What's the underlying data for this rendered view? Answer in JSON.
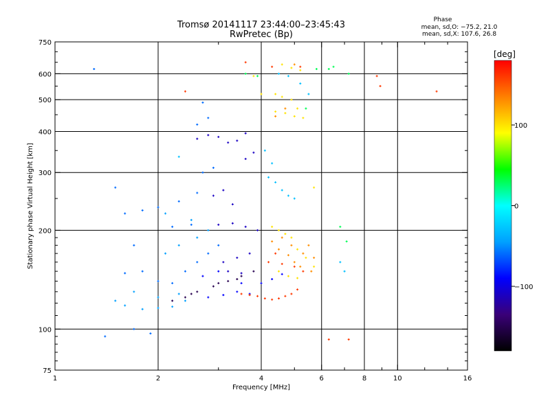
{
  "header": {
    "title": "Tromsø 20141117 23:44:00–23:45:43",
    "subtitle": "RwPretec (Bp)",
    "phase_box": {
      "heading": "Phase",
      "line_o": "mean, sd,O: −75.2, 21.0",
      "line_x": "mean, sd,X: 107.6, 26.8"
    }
  },
  "chart_data": {
    "type": "scatter",
    "xlabel": "Frequency [MHz]",
    "ylabel": "Stationary phase Virtual Height [km]",
    "x_scale": "log",
    "y_scale": "log",
    "xlim": [
      1,
      16
    ],
    "ylim": [
      75,
      750
    ],
    "x_ticks": [
      1,
      2,
      4,
      6,
      8,
      10,
      16
    ],
    "x_tick_labels": [
      "1",
      "2",
      "4",
      "6",
      "8",
      "10",
      "16"
    ],
    "y_ticks": [
      75,
      100,
      200,
      300,
      400,
      500,
      600,
      750
    ],
    "y_tick_labels": [
      "75",
      "100",
      "200",
      "300",
      "400",
      "500",
      "600",
      "750"
    ],
    "grid_x": [
      2,
      4,
      6,
      8,
      10
    ],
    "grid_y": [
      100,
      200,
      300,
      400,
      500,
      600
    ],
    "grid": true,
    "colorbar": {
      "label": "[deg]",
      "range": [
        -180,
        180
      ],
      "ticks": [
        100,
        0,
        -100
      ],
      "tick_labels": [
        "100",
        "0",
        "−100"
      ],
      "colors": [
        "#000000",
        "#3a0078",
        "#0000ff",
        "#00a0ff",
        "#00ffff",
        "#00ff00",
        "#ffff00",
        "#ff8000",
        "#ff0000"
      ]
    },
    "series": [
      {
        "color_value": -150,
        "points": [
          [
            2.2,
            122
          ],
          [
            2.4,
            125
          ],
          [
            2.6,
            130
          ],
          [
            2.9,
            135
          ],
          [
            3.2,
            140
          ],
          [
            3.5,
            145
          ],
          [
            3.8,
            150
          ],
          [
            2.5,
            128
          ],
          [
            3.0,
            138
          ],
          [
            3.4,
            142
          ]
        ]
      },
      {
        "color_value": -110,
        "points": [
          [
            2.6,
            380
          ],
          [
            2.8,
            390
          ],
          [
            3.0,
            385
          ],
          [
            3.2,
            370
          ],
          [
            3.4,
            375
          ],
          [
            3.6,
            395
          ],
          [
            2.9,
            255
          ],
          [
            3.1,
            265
          ],
          [
            3.3,
            240
          ],
          [
            3.6,
            330
          ],
          [
            3.8,
            345
          ],
          [
            3.0,
            208
          ],
          [
            3.3,
            210
          ],
          [
            3.6,
            205
          ],
          [
            3.9,
            200
          ],
          [
            3.1,
            160
          ],
          [
            3.4,
            165
          ],
          [
            3.7,
            170
          ],
          [
            3.2,
            150
          ],
          [
            3.5,
            148
          ]
        ]
      },
      {
        "color_value": -90,
        "points": [
          [
            2.8,
            125
          ],
          [
            3.1,
            127
          ],
          [
            3.4,
            130
          ],
          [
            3.7,
            128
          ],
          [
            4.0,
            138
          ],
          [
            4.3,
            142
          ],
          [
            4.6,
            147
          ],
          [
            3.5,
            138
          ],
          [
            2.7,
            145
          ],
          [
            3.0,
            150
          ]
        ]
      },
      {
        "color_value": -60,
        "points": [
          [
            1.6,
            148
          ],
          [
            1.8,
            150
          ],
          [
            2.0,
            140
          ],
          [
            2.2,
            138
          ],
          [
            2.4,
            150
          ],
          [
            2.6,
            160
          ],
          [
            2.8,
            170
          ],
          [
            3.0,
            180
          ],
          [
            2.2,
            205
          ],
          [
            2.5,
            208
          ],
          [
            2.0,
            235
          ],
          [
            2.3,
            245
          ],
          [
            2.6,
            260
          ],
          [
            1.6,
            225
          ],
          [
            1.8,
            230
          ],
          [
            2.7,
            300
          ],
          [
            2.9,
            310
          ],
          [
            2.6,
            420
          ],
          [
            2.8,
            440
          ],
          [
            2.7,
            490
          ],
          [
            1.3,
            620
          ],
          [
            1.5,
            270
          ],
          [
            1.7,
            180
          ],
          [
            1.4,
            95
          ],
          [
            1.7,
            100
          ],
          [
            1.9,
            97
          ]
        ]
      },
      {
        "color_value": -45,
        "points": [
          [
            1.6,
            118
          ],
          [
            1.8,
            115
          ],
          [
            2.0,
            116
          ],
          [
            2.2,
            117
          ],
          [
            2.4,
            122
          ],
          [
            2.0,
            125
          ],
          [
            2.3,
            128
          ],
          [
            1.5,
            122
          ],
          [
            1.7,
            130
          ],
          [
            2.1,
            170
          ],
          [
            2.3,
            180
          ],
          [
            2.6,
            190
          ],
          [
            2.1,
            225
          ],
          [
            2.5,
            215
          ],
          [
            2.8,
            200
          ]
        ]
      },
      {
        "color_value": -30,
        "points": [
          [
            4.2,
            290
          ],
          [
            4.4,
            280
          ],
          [
            4.6,
            265
          ],
          [
            4.8,
            255
          ],
          [
            5.0,
            250
          ],
          [
            4.5,
            600
          ],
          [
            4.8,
            590
          ],
          [
            5.2,
            560
          ],
          [
            5.5,
            520
          ],
          [
            4.1,
            350
          ],
          [
            4.3,
            320
          ],
          [
            6.8,
            160
          ],
          [
            7.0,
            150
          ],
          [
            2.3,
            335
          ]
        ]
      },
      {
        "color_value": 30,
        "points": [
          [
            6.3,
            620
          ],
          [
            6.5,
            630
          ],
          [
            7.2,
            600
          ],
          [
            3.6,
            600
          ],
          [
            3.9,
            590
          ],
          [
            6.8,
            205
          ],
          [
            7.1,
            185
          ],
          [
            5.8,
            620
          ],
          [
            5.4,
            470
          ]
        ]
      },
      {
        "color_value": 100,
        "points": [
          [
            4.3,
            205
          ],
          [
            4.5,
            200
          ],
          [
            4.7,
            195
          ],
          [
            4.9,
            190
          ],
          [
            5.1,
            175
          ],
          [
            5.4,
            165
          ],
          [
            5.7,
            155
          ],
          [
            4.5,
            150
          ],
          [
            4.8,
            145
          ],
          [
            5.1,
            143
          ],
          [
            4.4,
            520
          ],
          [
            4.6,
            510
          ],
          [
            4.9,
            500
          ],
          [
            5.1,
            470
          ],
          [
            4.6,
            640
          ],
          [
            4.9,
            625
          ],
          [
            5.2,
            615
          ],
          [
            3.8,
            590
          ],
          [
            4.0,
            520
          ],
          [
            4.4,
            460
          ],
          [
            4.7,
            455
          ],
          [
            5.0,
            445
          ],
          [
            5.3,
            440
          ],
          [
            5.7,
            270
          ]
        ]
      },
      {
        "color_value": 130,
        "points": [
          [
            4.3,
            185
          ],
          [
            4.5,
            175
          ],
          [
            4.8,
            168
          ],
          [
            5.0,
            160
          ],
          [
            5.3,
            170
          ],
          [
            5.5,
            180
          ],
          [
            5.7,
            165
          ],
          [
            4.6,
            190
          ],
          [
            4.9,
            180
          ],
          [
            5.2,
            155
          ],
          [
            5.6,
            150
          ],
          [
            4.4,
            445
          ],
          [
            4.7,
            470
          ],
          [
            5.0,
            640
          ]
        ]
      },
      {
        "color_value": 160,
        "points": [
          [
            3.5,
            128
          ],
          [
            3.7,
            127
          ],
          [
            3.9,
            126
          ],
          [
            4.1,
            124
          ],
          [
            4.3,
            123
          ],
          [
            4.5,
            124
          ],
          [
            4.7,
            126
          ],
          [
            4.9,
            128
          ],
          [
            5.1,
            132
          ],
          [
            4.2,
            160
          ],
          [
            4.6,
            158
          ],
          [
            5.0,
            155
          ],
          [
            4.3,
            630
          ],
          [
            5.2,
            630
          ],
          [
            3.6,
            650
          ],
          [
            2.4,
            530
          ],
          [
            6.3,
            93
          ],
          [
            7.2,
            93
          ],
          [
            8.7,
            590
          ],
          [
            8.9,
            550
          ],
          [
            13,
            530
          ],
          [
            4.4,
            170
          ],
          [
            5.3,
            150
          ]
        ]
      }
    ]
  }
}
